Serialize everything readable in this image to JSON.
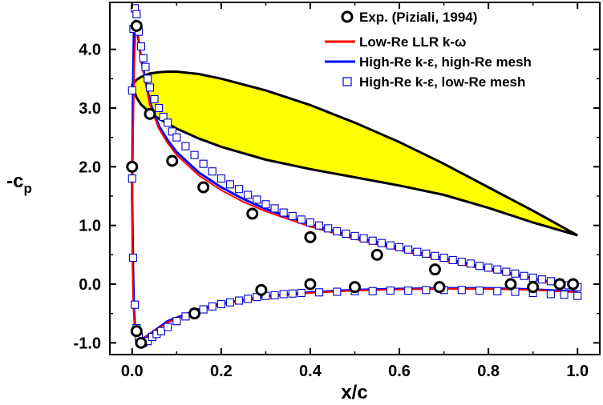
{
  "chart_data": {
    "type": "line",
    "xlabel": "x/c",
    "ylabel": "-c",
    "ylabel_sub": "p",
    "xlim": [
      -0.05,
      1.05
    ],
    "ylim": [
      -1.2,
      4.8
    ],
    "x_ticks": [
      "0.0",
      "0.2",
      "0.4",
      "0.6",
      "0.8",
      "1.0"
    ],
    "y_ticks": [
      "-1.0",
      "0.0",
      "1.0",
      "2.0",
      "3.0",
      "4.0"
    ],
    "legend_position": "top-right",
    "colors": {
      "exp": "#000000",
      "low_re_llr": "#ff0000",
      "high_re_mesh": "#0000ff",
      "low_re_mesh": "#0000cc",
      "airfoil_fill": "#ffff00",
      "airfoil_edge": "#000000"
    },
    "legend": [
      {
        "label": "Exp. (Piziali, 1994)",
        "marker": "circle"
      },
      {
        "label": "Low-Re LLR k-ω",
        "marker": "line-red"
      },
      {
        "label": "High-Re k-ε, high-Re mesh",
        "marker": "line-blue"
      },
      {
        "label": "High-Re k-ε, low-Re mesh",
        "marker": "square"
      }
    ],
    "series": [
      {
        "name": "Exp. (Piziali, 1994)",
        "kind": "markers-circle",
        "points": [
          [
            0.0,
            2.0
          ],
          [
            0.01,
            4.4
          ],
          [
            0.04,
            2.9
          ],
          [
            0.09,
            2.1
          ],
          [
            0.16,
            1.65
          ],
          [
            0.27,
            1.2
          ],
          [
            0.4,
            0.8
          ],
          [
            0.55,
            0.5
          ],
          [
            0.68,
            0.25
          ],
          [
            0.01,
            -0.8
          ],
          [
            0.02,
            -1.0
          ],
          [
            0.14,
            -0.5
          ],
          [
            0.29,
            -0.1
          ],
          [
            0.4,
            0.0
          ],
          [
            0.5,
            -0.05
          ],
          [
            0.69,
            -0.05
          ],
          [
            0.85,
            0.0
          ],
          [
            0.9,
            -0.05
          ],
          [
            0.96,
            0.0
          ],
          [
            0.99,
            0.0
          ]
        ]
      },
      {
        "name": "Low-Re LLR k-ω",
        "kind": "line",
        "upper": [
          [
            0.0,
            0.7
          ],
          [
            0.002,
            2.5
          ],
          [
            0.005,
            3.8
          ],
          [
            0.008,
            4.3
          ],
          [
            0.012,
            4.35
          ],
          [
            0.02,
            3.8
          ],
          [
            0.04,
            3.05
          ],
          [
            0.06,
            2.65
          ],
          [
            0.08,
            2.4
          ],
          [
            0.1,
            2.2
          ],
          [
            0.15,
            1.85
          ],
          [
            0.2,
            1.6
          ],
          [
            0.25,
            1.4
          ],
          [
            0.3,
            1.24
          ],
          [
            0.4,
            0.98
          ],
          [
            0.5,
            0.77
          ],
          [
            0.6,
            0.58
          ],
          [
            0.7,
            0.4
          ],
          [
            0.8,
            0.24
          ],
          [
            0.9,
            0.08
          ],
          [
            0.95,
            0.0
          ],
          [
            1.0,
            -0.08
          ]
        ],
        "lower": [
          [
            0.0,
            0.7
          ],
          [
            0.002,
            -0.2
          ],
          [
            0.005,
            -0.7
          ],
          [
            0.01,
            -0.92
          ],
          [
            0.015,
            -0.97
          ],
          [
            0.02,
            -0.95
          ],
          [
            0.04,
            -0.85
          ],
          [
            0.08,
            -0.65
          ],
          [
            0.15,
            -0.45
          ],
          [
            0.2,
            -0.35
          ],
          [
            0.3,
            -0.22
          ],
          [
            0.4,
            -0.15
          ],
          [
            0.5,
            -0.11
          ],
          [
            0.6,
            -0.09
          ],
          [
            0.7,
            -0.08
          ],
          [
            0.8,
            -0.08
          ],
          [
            0.9,
            -0.1
          ],
          [
            1.0,
            -0.14
          ]
        ]
      },
      {
        "name": "High-Re k-ε, high-Re mesh",
        "kind": "line",
        "upper": [
          [
            0.0,
            1.5
          ],
          [
            0.002,
            3.4
          ],
          [
            0.004,
            4.3
          ],
          [
            0.007,
            4.5
          ],
          [
            0.01,
            4.4
          ],
          [
            0.02,
            3.85
          ],
          [
            0.04,
            3.1
          ],
          [
            0.06,
            2.7
          ],
          [
            0.08,
            2.45
          ],
          [
            0.1,
            2.25
          ],
          [
            0.15,
            1.9
          ],
          [
            0.2,
            1.65
          ],
          [
            0.25,
            1.45
          ],
          [
            0.3,
            1.28
          ],
          [
            0.4,
            1.02
          ],
          [
            0.5,
            0.81
          ],
          [
            0.6,
            0.62
          ],
          [
            0.7,
            0.44
          ],
          [
            0.8,
            0.27
          ],
          [
            0.9,
            0.1
          ],
          [
            0.95,
            0.02
          ],
          [
            1.0,
            -0.08
          ]
        ],
        "lower": [
          [
            0.0,
            1.5
          ],
          [
            0.002,
            0.3
          ],
          [
            0.004,
            -0.4
          ],
          [
            0.007,
            -0.8
          ],
          [
            0.01,
            -0.93
          ],
          [
            0.015,
            -0.98
          ],
          [
            0.02,
            -0.95
          ],
          [
            0.04,
            -0.85
          ],
          [
            0.08,
            -0.63
          ],
          [
            0.15,
            -0.43
          ],
          [
            0.2,
            -0.33
          ],
          [
            0.3,
            -0.21
          ],
          [
            0.4,
            -0.14
          ],
          [
            0.5,
            -0.1
          ],
          [
            0.6,
            -0.08
          ],
          [
            0.7,
            -0.07
          ],
          [
            0.8,
            -0.07
          ],
          [
            0.9,
            -0.09
          ],
          [
            1.0,
            -0.13
          ]
        ]
      },
      {
        "name": "High-Re k-ε, low-Re mesh",
        "kind": "markers-square",
        "points": [
          [
            0.0,
            1.8
          ],
          [
            0.0,
            3.3
          ],
          [
            0.003,
            4.35
          ],
          [
            0.006,
            4.7
          ],
          [
            0.01,
            4.6
          ],
          [
            0.015,
            4.3
          ],
          [
            0.02,
            4.05
          ],
          [
            0.025,
            3.85
          ],
          [
            0.03,
            3.7
          ],
          [
            0.035,
            3.5
          ],
          [
            0.04,
            3.35
          ],
          [
            0.05,
            3.15
          ],
          [
            0.06,
            3.0
          ],
          [
            0.07,
            2.85
          ],
          [
            0.08,
            2.75
          ],
          [
            0.09,
            2.6
          ],
          [
            0.1,
            2.5
          ],
          [
            0.12,
            2.35
          ],
          [
            0.14,
            2.2
          ],
          [
            0.16,
            2.05
          ],
          [
            0.18,
            1.92
          ],
          [
            0.2,
            1.8
          ],
          [
            0.22,
            1.7
          ],
          [
            0.24,
            1.62
          ],
          [
            0.26,
            1.52
          ],
          [
            0.28,
            1.44
          ],
          [
            0.3,
            1.36
          ],
          [
            0.32,
            1.29
          ],
          [
            0.34,
            1.22
          ],
          [
            0.36,
            1.16
          ],
          [
            0.38,
            1.1
          ],
          [
            0.4,
            1.05
          ],
          [
            0.42,
            1.0
          ],
          [
            0.44,
            0.95
          ],
          [
            0.46,
            0.9
          ],
          [
            0.48,
            0.86
          ],
          [
            0.5,
            0.82
          ],
          [
            0.52,
            0.78
          ],
          [
            0.54,
            0.74
          ],
          [
            0.56,
            0.7
          ],
          [
            0.58,
            0.66
          ],
          [
            0.6,
            0.63
          ],
          [
            0.62,
            0.59
          ],
          [
            0.64,
            0.55
          ],
          [
            0.66,
            0.52
          ],
          [
            0.68,
            0.48
          ],
          [
            0.7,
            0.45
          ],
          [
            0.72,
            0.41
          ],
          [
            0.74,
            0.38
          ],
          [
            0.76,
            0.35
          ],
          [
            0.78,
            0.31
          ],
          [
            0.8,
            0.28
          ],
          [
            0.82,
            0.25
          ],
          [
            0.84,
            0.21
          ],
          [
            0.86,
            0.18
          ],
          [
            0.88,
            0.14
          ],
          [
            0.9,
            0.11
          ],
          [
            0.92,
            0.08
          ],
          [
            0.94,
            0.05
          ],
          [
            0.96,
            0.02
          ],
          [
            0.98,
            -0.02
          ],
          [
            1.0,
            -0.05
          ],
          [
            0.002,
            0.45
          ],
          [
            0.006,
            -0.35
          ],
          [
            0.01,
            -0.75
          ],
          [
            0.015,
            -0.9
          ],
          [
            0.025,
            -1.0
          ],
          [
            0.035,
            -0.97
          ],
          [
            0.045,
            -0.9
          ],
          [
            0.055,
            -0.85
          ],
          [
            0.065,
            -0.8
          ],
          [
            0.08,
            -0.73
          ],
          [
            0.1,
            -0.63
          ],
          [
            0.12,
            -0.55
          ],
          [
            0.14,
            -0.48
          ],
          [
            0.16,
            -0.43
          ],
          [
            0.18,
            -0.38
          ],
          [
            0.2,
            -0.34
          ],
          [
            0.22,
            -0.31
          ],
          [
            0.24,
            -0.28
          ],
          [
            0.26,
            -0.25
          ],
          [
            0.28,
            -0.22
          ],
          [
            0.3,
            -0.2
          ],
          [
            0.32,
            -0.19
          ],
          [
            0.34,
            -0.17
          ],
          [
            0.36,
            -0.16
          ],
          [
            0.38,
            -0.15
          ],
          [
            0.42,
            -0.14
          ],
          [
            0.46,
            -0.13
          ],
          [
            0.5,
            -0.12
          ],
          [
            0.54,
            -0.12
          ],
          [
            0.58,
            -0.11
          ],
          [
            0.62,
            -0.11
          ],
          [
            0.66,
            -0.1
          ],
          [
            0.7,
            -0.1
          ],
          [
            0.74,
            -0.1
          ],
          [
            0.78,
            -0.11
          ],
          [
            0.82,
            -0.12
          ],
          [
            0.86,
            -0.13
          ],
          [
            0.9,
            -0.15
          ],
          [
            0.94,
            -0.17
          ],
          [
            0.97,
            -0.18
          ],
          [
            1.0,
            -0.2
          ]
        ]
      }
    ],
    "airfoil_outline": [
      [
        0.0,
        3.4
      ],
      [
        0.01,
        3.48
      ],
      [
        0.02,
        3.53
      ],
      [
        0.04,
        3.59
      ],
      [
        0.06,
        3.61
      ],
      [
        0.08,
        3.62
      ],
      [
        0.1,
        3.62
      ],
      [
        0.15,
        3.58
      ],
      [
        0.2,
        3.5
      ],
      [
        0.3,
        3.3
      ],
      [
        0.4,
        3.05
      ],
      [
        0.5,
        2.75
      ],
      [
        0.6,
        2.42
      ],
      [
        0.7,
        2.05
      ],
      [
        0.8,
        1.65
      ],
      [
        0.9,
        1.25
      ],
      [
        1.0,
        0.83
      ],
      [
        0.9,
        1.05
      ],
      [
        0.8,
        1.3
      ],
      [
        0.7,
        1.52
      ],
      [
        0.6,
        1.68
      ],
      [
        0.5,
        1.82
      ],
      [
        0.4,
        1.96
      ],
      [
        0.3,
        2.12
      ],
      [
        0.2,
        2.34
      ],
      [
        0.15,
        2.48
      ],
      [
        0.1,
        2.65
      ],
      [
        0.06,
        2.82
      ],
      [
        0.04,
        2.92
      ],
      [
        0.02,
        3.06
      ],
      [
        0.01,
        3.18
      ],
      [
        0.0,
        3.4
      ]
    ]
  }
}
